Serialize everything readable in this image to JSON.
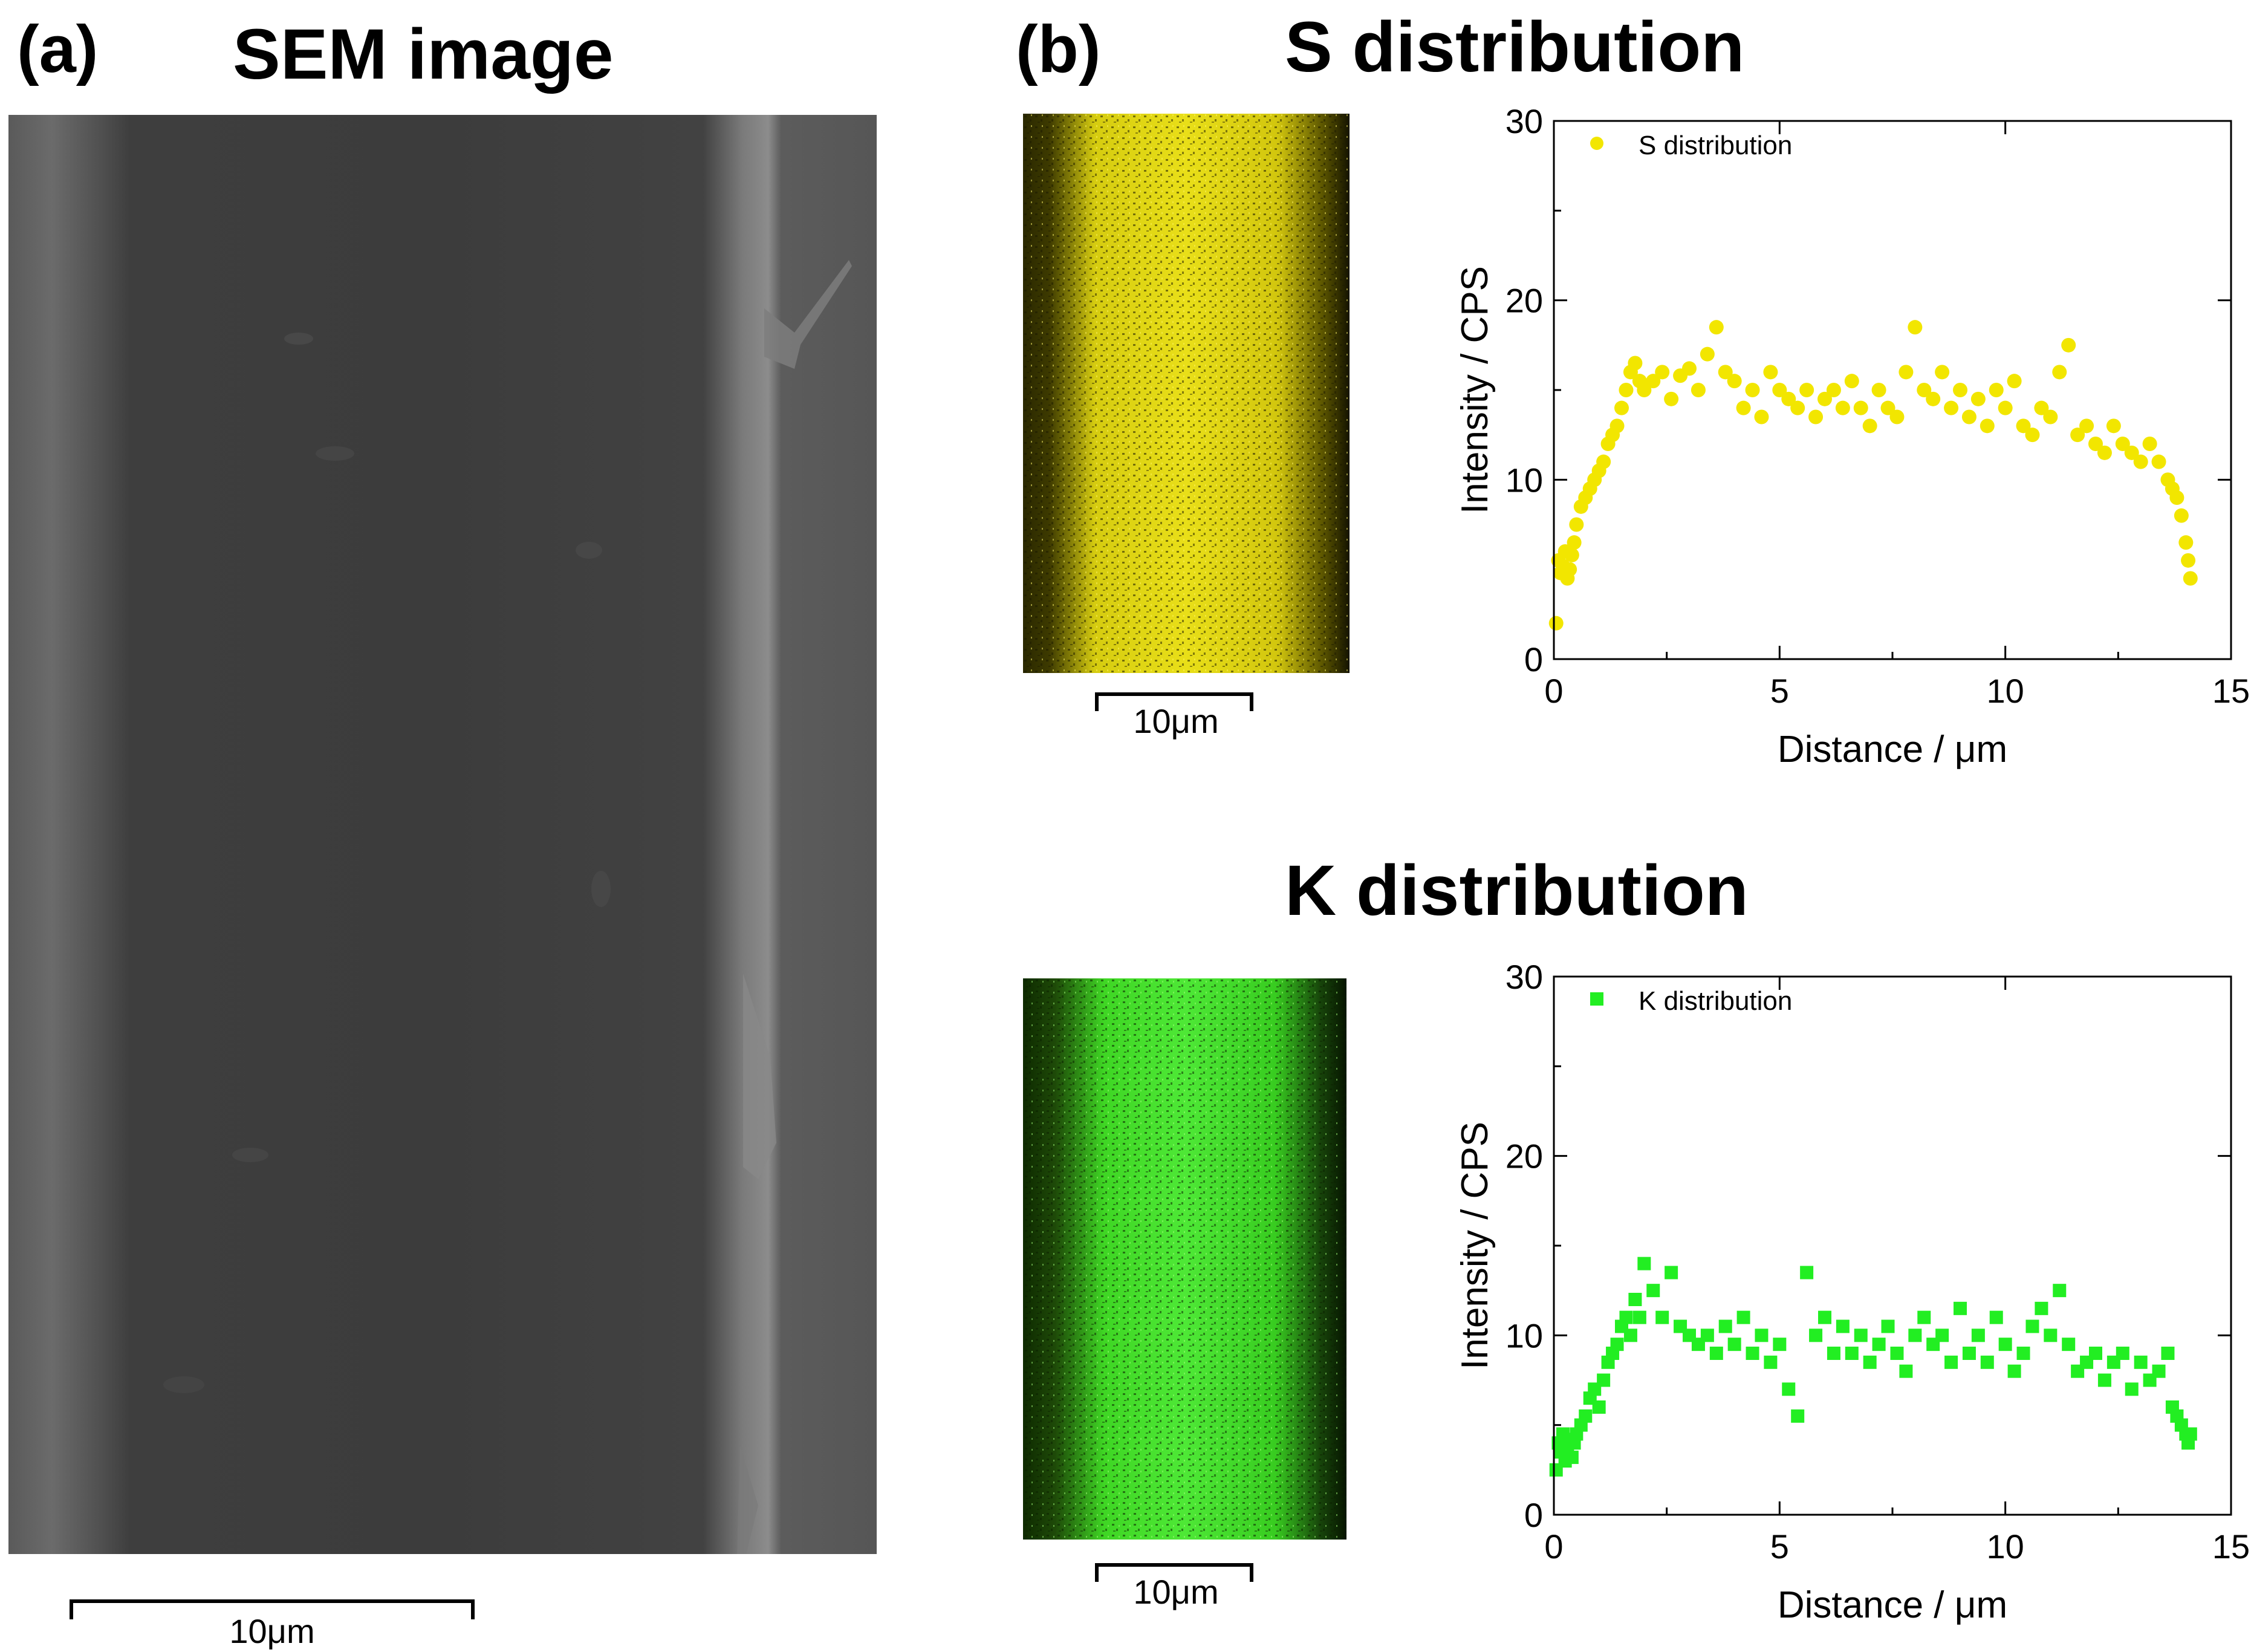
{
  "panel_a": {
    "letter": "(a)",
    "title": "SEM image",
    "scale_bar": "10μm"
  },
  "panel_b": {
    "letter": "(b)",
    "s_title": "S distribution",
    "k_title": "K distribution",
    "s_map_scale": "10μm",
    "k_map_scale": "10μm"
  },
  "colors": {
    "sulfur": "#f2e600",
    "potassium": "#22ee22",
    "sem_gray": "#4a4a4a"
  },
  "chart_data": [
    {
      "type": "scatter",
      "marker": "circle",
      "title": "",
      "xlabel": "Distance / μm",
      "ylabel": "Intensity / CPS",
      "xlim": [
        0,
        15
      ],
      "ylim": [
        0,
        30
      ],
      "xticks": [
        0,
        5,
        10,
        15
      ],
      "yticks": [
        0,
        10,
        20,
        30
      ],
      "legend_position": "top-left",
      "series": [
        {
          "name": "S distribution",
          "color": "#f2e600",
          "x": [
            0.05,
            0.1,
            0.15,
            0.2,
            0.25,
            0.3,
            0.35,
            0.4,
            0.45,
            0.5,
            0.6,
            0.7,
            0.8,
            0.9,
            1.0,
            1.1,
            1.2,
            1.3,
            1.4,
            1.5,
            1.6,
            1.7,
            1.8,
            1.9,
            2.0,
            2.2,
            2.4,
            2.6,
            2.8,
            3.0,
            3.2,
            3.4,
            3.6,
            3.8,
            4.0,
            4.2,
            4.4,
            4.6,
            4.8,
            5.0,
            5.2,
            5.4,
            5.6,
            5.8,
            6.0,
            6.2,
            6.4,
            6.6,
            6.8,
            7.0,
            7.2,
            7.4,
            7.6,
            7.8,
            8.0,
            8.2,
            8.4,
            8.6,
            8.8,
            9.0,
            9.2,
            9.4,
            9.6,
            9.8,
            10.0,
            10.2,
            10.4,
            10.6,
            10.8,
            11.0,
            11.2,
            11.4,
            11.6,
            11.8,
            12.0,
            12.2,
            12.4,
            12.6,
            12.8,
            13.0,
            13.2,
            13.4,
            13.6,
            13.7,
            13.8,
            13.9,
            14.0,
            14.05,
            14.1
          ],
          "y": [
            2.0,
            5.5,
            4.8,
            5.2,
            6.0,
            4.5,
            5.0,
            5.8,
            6.5,
            7.5,
            8.5,
            9.0,
            9.5,
            10.0,
            10.5,
            11.0,
            12.0,
            12.5,
            13.0,
            14.0,
            15.0,
            16.0,
            16.5,
            15.5,
            15.0,
            15.5,
            16.0,
            14.5,
            15.8,
            16.2,
            15.0,
            17.0,
            18.5,
            16.0,
            15.5,
            14.0,
            15.0,
            13.5,
            16.0,
            15.0,
            14.5,
            14.0,
            15.0,
            13.5,
            14.5,
            15.0,
            14.0,
            15.5,
            14.0,
            13.0,
            15.0,
            14.0,
            13.5,
            16.0,
            18.5,
            15.0,
            14.5,
            16.0,
            14.0,
            15.0,
            13.5,
            14.5,
            13.0,
            15.0,
            14.0,
            15.5,
            13.0,
            12.5,
            14.0,
            13.5,
            16.0,
            17.5,
            12.5,
            13.0,
            12.0,
            11.5,
            13.0,
            12.0,
            11.5,
            11.0,
            12.0,
            11.0,
            10.0,
            9.5,
            9.0,
            8.0,
            6.5,
            5.5,
            4.5
          ]
        }
      ]
    },
    {
      "type": "scatter",
      "marker": "square",
      "title": "",
      "xlabel": "Distance / μm",
      "ylabel": "Intensity / CPS",
      "xlim": [
        0,
        15
      ],
      "ylim": [
        0,
        30
      ],
      "xticks": [
        0,
        5,
        10,
        15
      ],
      "yticks": [
        0,
        10,
        20,
        30
      ],
      "legend_position": "top-left",
      "series": [
        {
          "name": "K distribution",
          "color": "#22ee22",
          "x": [
            0.05,
            0.1,
            0.15,
            0.2,
            0.25,
            0.3,
            0.35,
            0.4,
            0.45,
            0.5,
            0.6,
            0.7,
            0.8,
            0.9,
            1.0,
            1.1,
            1.2,
            1.3,
            1.4,
            1.5,
            1.6,
            1.7,
            1.8,
            1.9,
            2.0,
            2.2,
            2.4,
            2.6,
            2.8,
            3.0,
            3.2,
            3.4,
            3.6,
            3.8,
            4.0,
            4.2,
            4.4,
            4.6,
            4.8,
            5.0,
            5.2,
            5.4,
            5.6,
            5.8,
            6.0,
            6.2,
            6.4,
            6.6,
            6.8,
            7.0,
            7.2,
            7.4,
            7.6,
            7.8,
            8.0,
            8.2,
            8.4,
            8.6,
            8.8,
            9.0,
            9.2,
            9.4,
            9.6,
            9.8,
            10.0,
            10.2,
            10.4,
            10.6,
            10.8,
            11.0,
            11.2,
            11.4,
            11.6,
            11.8,
            12.0,
            12.2,
            12.4,
            12.6,
            12.8,
            13.0,
            13.2,
            13.4,
            13.6,
            13.7,
            13.8,
            13.9,
            14.0,
            14.05,
            14.1
          ],
          "y": [
            2.5,
            4.0,
            3.5,
            4.5,
            3.0,
            3.8,
            4.2,
            3.2,
            4.0,
            4.5,
            5.0,
            5.5,
            6.5,
            7.0,
            6.0,
            7.5,
            8.5,
            9.0,
            9.5,
            10.5,
            11.0,
            10.0,
            12.0,
            11.0,
            14.0,
            12.5,
            11.0,
            13.5,
            10.5,
            10.0,
            9.5,
            10.0,
            9.0,
            10.5,
            9.5,
            11.0,
            9.0,
            10.0,
            8.5,
            9.5,
            7.0,
            5.5,
            13.5,
            10.0,
            11.0,
            9.0,
            10.5,
            9.0,
            10.0,
            8.5,
            9.5,
            10.5,
            9.0,
            8.0,
            10.0,
            11.0,
            9.5,
            10.0,
            8.5,
            11.5,
            9.0,
            10.0,
            8.5,
            11.0,
            9.5,
            8.0,
            9.0,
            10.5,
            11.5,
            10.0,
            12.5,
            9.5,
            8.0,
            8.5,
            9.0,
            7.5,
            8.5,
            9.0,
            7.0,
            8.5,
            7.5,
            8.0,
            9.0,
            6.0,
            5.5,
            5.0,
            4.5,
            4.0,
            4.5
          ]
        }
      ]
    }
  ]
}
